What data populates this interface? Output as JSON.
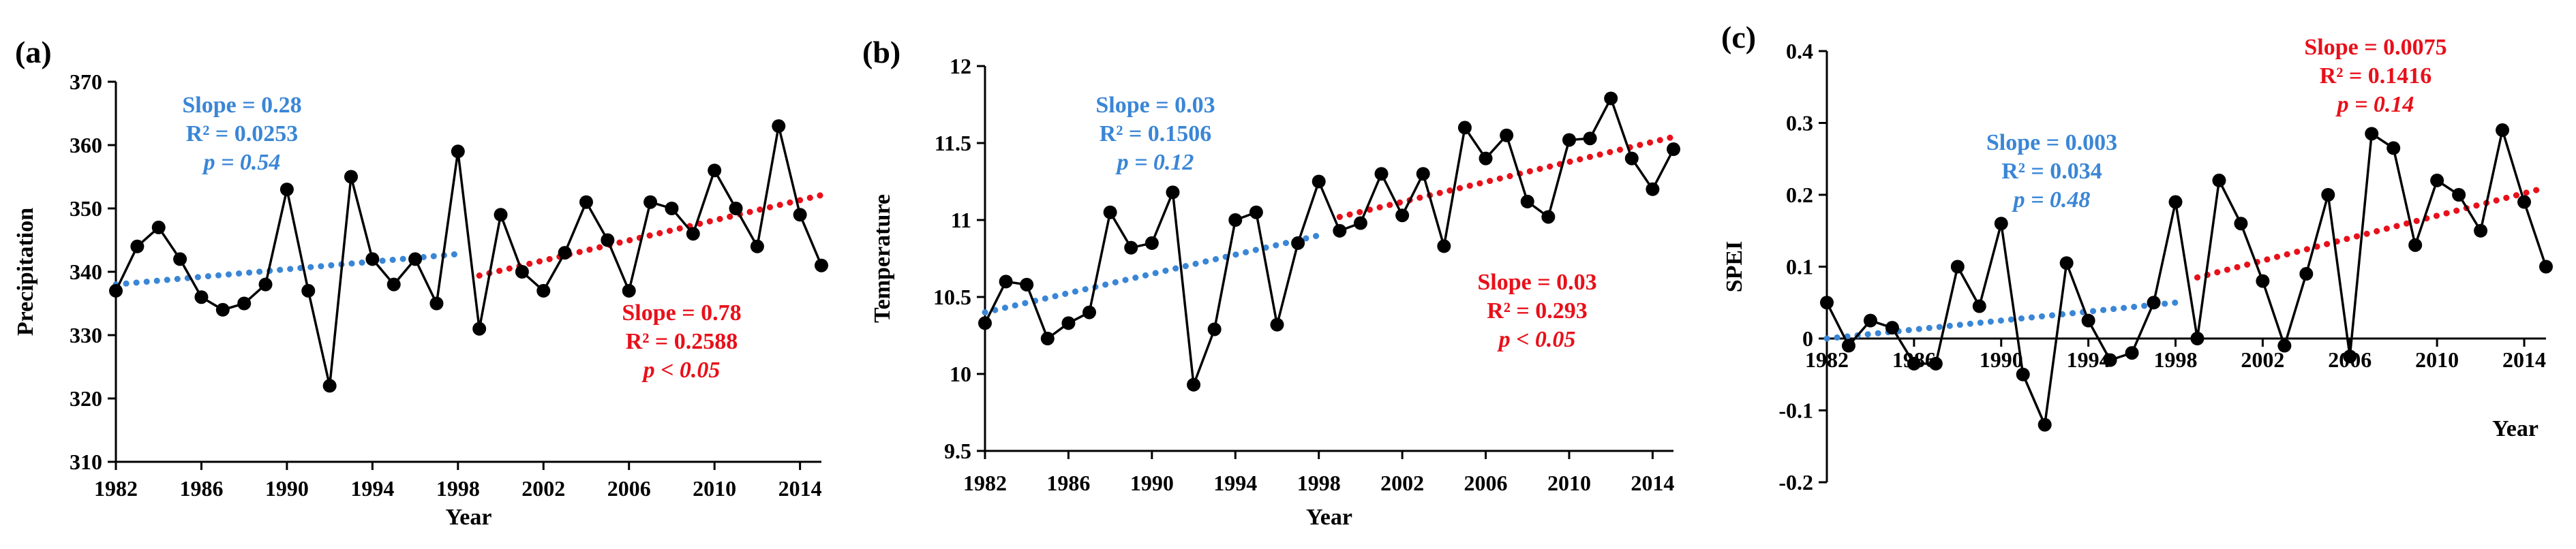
{
  "colors": {
    "series": "#000000",
    "trend_early": "#3a86d6",
    "trend_late": "#e8101a"
  },
  "chart_data": [
    {
      "type": "line",
      "panel_label": "(a)",
      "title": "",
      "xlabel": "Year",
      "ylabel": "Precipitation",
      "xlim": [
        1982,
        2015
      ],
      "ylim": [
        310,
        370
      ],
      "x_ticks": [
        1982,
        1986,
        1990,
        1994,
        1998,
        2002,
        2006,
        2010,
        2014
      ],
      "y_ticks": [
        310,
        320,
        330,
        340,
        350,
        360,
        370
      ],
      "grid": false,
      "x": [
        1982,
        1983,
        1984,
        1985,
        1986,
        1987,
        1988,
        1989,
        1990,
        1991,
        1992,
        1993,
        1994,
        1995,
        1996,
        1997,
        1998,
        1999,
        2000,
        2001,
        2002,
        2003,
        2004,
        2005,
        2006,
        2007,
        2008,
        2009,
        2010,
        2011,
        2012,
        2013,
        2014,
        2015
      ],
      "values": [
        337,
        344,
        347,
        342,
        336,
        334,
        335,
        338,
        353,
        337,
        322,
        355,
        342,
        338,
        342,
        335,
        359,
        331,
        349,
        340,
        337,
        343,
        351,
        345,
        337,
        351,
        350,
        346,
        356,
        350,
        344,
        363,
        349,
        341
      ],
      "trends": [
        {
          "name": "early",
          "x": [
            1982,
            1998
          ],
          "y": [
            338.0,
            342.8
          ],
          "labels": {
            "slope": "Slope = 0.28",
            "r2": "R² = 0.0253",
            "p": "p = 0.54"
          }
        },
        {
          "name": "late",
          "x": [
            1999,
            2015
          ],
          "y": [
            339.4,
            352.1
          ],
          "labels": {
            "slope": "Slope = 0.78",
            "r2": "R² = 0.2588",
            "p": "p < 0.05"
          }
        }
      ]
    },
    {
      "type": "line",
      "panel_label": "(b)",
      "title": "",
      "xlabel": "Year",
      "ylabel": "Temperature",
      "xlim": [
        1982,
        2015
      ],
      "ylim": [
        9.5,
        12
      ],
      "x_ticks": [
        1982,
        1986,
        1990,
        1994,
        1998,
        2002,
        2006,
        2010,
        2014
      ],
      "y_ticks": [
        "9.5",
        "10",
        "10.5",
        "11",
        "11.5",
        "12"
      ],
      "grid": false,
      "x": [
        1982,
        1983,
        1984,
        1985,
        1986,
        1987,
        1988,
        1989,
        1990,
        1991,
        1992,
        1993,
        1994,
        1995,
        1996,
        1997,
        1998,
        1999,
        2000,
        2001,
        2002,
        2003,
        2004,
        2005,
        2006,
        2007,
        2008,
        2009,
        2010,
        2011,
        2012,
        2013,
        2014,
        2015
      ],
      "values": [
        10.33,
        10.6,
        10.58,
        10.23,
        10.33,
        10.4,
        11.05,
        10.82,
        10.85,
        11.18,
        9.93,
        10.29,
        11.0,
        11.05,
        10.32,
        10.85,
        11.25,
        10.93,
        10.98,
        11.3,
        11.03,
        11.3,
        10.83,
        11.6,
        11.4,
        11.55,
        11.12,
        11.02,
        11.52,
        11.53,
        11.79,
        11.4,
        11.2,
        11.46
      ],
      "trends": [
        {
          "name": "early",
          "x": [
            1982,
            1998
          ],
          "y": [
            10.4,
            10.9
          ],
          "labels": {
            "slope": "Slope = 0.03",
            "r2": "R² = 0.1506",
            "p": "p = 0.12"
          }
        },
        {
          "name": "late",
          "x": [
            1999,
            2015
          ],
          "y": [
            11.02,
            11.54
          ],
          "labels": {
            "slope": "Slope = 0.03",
            "r2": "R² = 0.293",
            "p": "p < 0.05"
          }
        }
      ]
    },
    {
      "type": "line",
      "panel_label": "(c)",
      "title": "",
      "xlabel": "Year",
      "ylabel": "SPEI",
      "xlim": [
        1982,
        2015
      ],
      "ylim": [
        -0.2,
        0.4
      ],
      "x_ticks": [
        1982,
        1986,
        1990,
        1994,
        1998,
        2002,
        2006,
        2010,
        2014
      ],
      "y_ticks": [
        "-0.2",
        "-0.1",
        "0",
        "0.1",
        "0.2",
        "0.3",
        "0.4"
      ],
      "grid": false,
      "x": [
        1982,
        1983,
        1984,
        1985,
        1986,
        1987,
        1988,
        1989,
        1990,
        1991,
        1992,
        1993,
        1994,
        1995,
        1996,
        1997,
        1998,
        1999,
        2000,
        2001,
        2002,
        2003,
        2004,
        2005,
        2006,
        2007,
        2008,
        2009,
        2010,
        2011,
        2012,
        2013,
        2014,
        2015
      ],
      "values": [
        0.05,
        -0.01,
        0.025,
        0.015,
        -0.035,
        -0.035,
        0.1,
        0.045,
        0.16,
        -0.05,
        -0.12,
        0.105,
        0.025,
        -0.03,
        -0.02,
        0.05,
        0.19,
        0.0,
        0.22,
        0.16,
        0.08,
        -0.01,
        0.09,
        0.2,
        -0.025,
        0.285,
        0.265,
        0.13,
        0.22,
        0.2,
        0.15,
        0.29,
        0.19,
        0.1
      ],
      "trends": [
        {
          "name": "early",
          "x": [
            1982,
            1998
          ],
          "y": [
            0.0,
            0.05
          ],
          "labels": {
            "slope": "Slope = 0.003",
            "r2": "R² = 0.034",
            "p": "p = 0.48"
          }
        },
        {
          "name": "late",
          "x": [
            1999,
            2015
          ],
          "y": [
            0.085,
            0.21
          ],
          "labels": {
            "slope": "Slope = 0.0075",
            "r2": "R² = 0.1416",
            "p": "p = 0.14"
          }
        }
      ]
    }
  ]
}
